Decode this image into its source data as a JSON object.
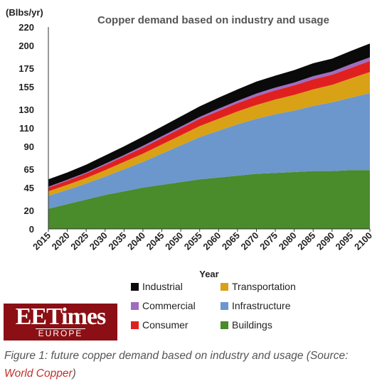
{
  "chart_data": {
    "type": "area",
    "stacked": true,
    "title": "Copper demand based on industry and usage",
    "ylabel": "(Blbs/yr)",
    "xlabel": "Year",
    "ylim": [
      0,
      220
    ],
    "yticks": [
      0,
      20,
      45,
      65,
      90,
      110,
      130,
      155,
      175,
      200,
      220
    ],
    "x": [
      2015,
      2020,
      2025,
      2030,
      2035,
      2040,
      2045,
      2050,
      2055,
      2060,
      2065,
      2070,
      2075,
      2080,
      2085,
      2090,
      2095,
      2100
    ],
    "series": [
      {
        "name": "Buildings",
        "color": "#4a8b2c",
        "values": [
          22,
          27,
          32,
          37,
          41,
          45,
          48,
          51,
          54,
          56,
          58,
          60,
          61,
          62,
          63,
          63,
          64,
          64
        ]
      },
      {
        "name": "Infrastructure",
        "color": "#6b97cc",
        "values": [
          14,
          15.5,
          17.5,
          20,
          24,
          28,
          34,
          40,
          46,
          51,
          56,
          60,
          64,
          67,
          71,
          75,
          79,
          84
        ]
      },
      {
        "name": "Transportation",
        "color": "#d9a116",
        "values": [
          5,
          5.5,
          6,
          7,
          8,
          9,
          10,
          11,
          12,
          13,
          14,
          15,
          16,
          17,
          18,
          19,
          21,
          23
        ]
      },
      {
        "name": "Consumer",
        "color": "#e0201f",
        "values": [
          4,
          4.5,
          5,
          5.5,
          6,
          6.5,
          7,
          7.5,
          8,
          8.5,
          9,
          9.5,
          10,
          10.5,
          11,
          11,
          11.5,
          12
        ]
      },
      {
        "name": "Commercial",
        "color": "#a06cc0",
        "values": [
          1,
          1,
          1,
          1.5,
          1.5,
          2,
          2,
          2,
          2,
          2.5,
          2.5,
          3,
          3,
          3,
          3.5,
          3.5,
          4,
          4
        ]
      },
      {
        "name": "Industrial",
        "color": "#0a0a0a",
        "values": [
          8,
          8,
          8.5,
          9,
          9.5,
          10,
          10.5,
          11,
          11.5,
          12,
          12.5,
          13,
          13,
          13.5,
          14,
          14,
          14.5,
          15
        ]
      }
    ],
    "legend_order": [
      "Industrial",
      "Transportation",
      "Commercial",
      "Infrastructure",
      "Consumer",
      "Buildings"
    ],
    "grid": false,
    "legend_position": "bottom"
  },
  "logo": {
    "top": "EETimes",
    "bottom": "EUROPE"
  },
  "caption": {
    "text": "Figure 1: future copper demand based on industry and usage (Source: ",
    "link": "World Copper",
    "close": ")"
  }
}
